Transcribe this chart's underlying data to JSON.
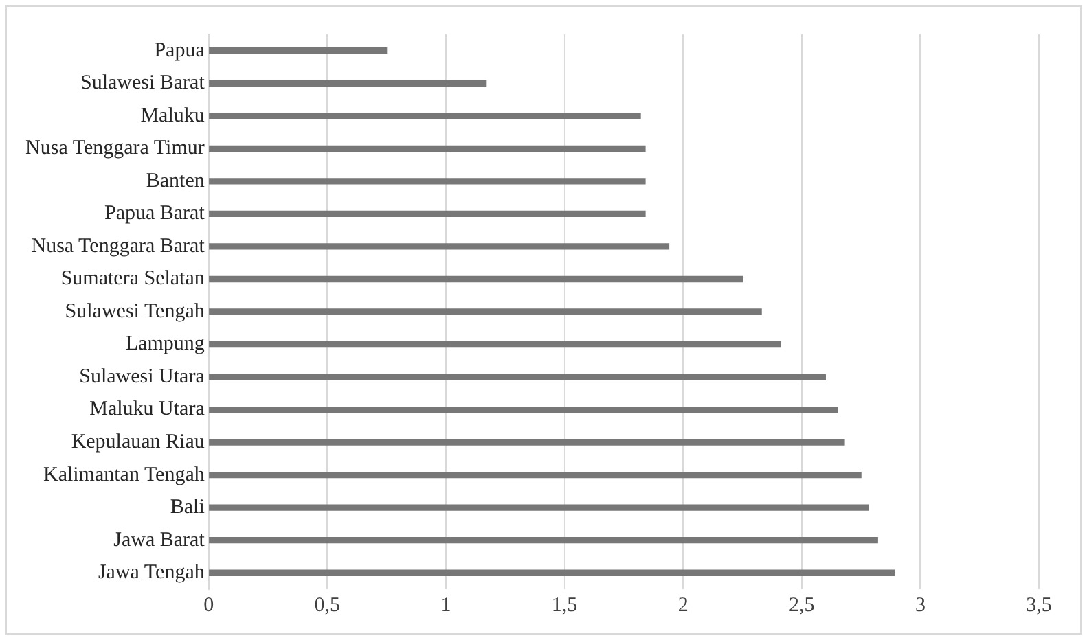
{
  "chart_data": {
    "type": "bar",
    "orientation": "horizontal",
    "categories": [
      "Papua",
      "Sulawesi Barat",
      "Maluku",
      "Nusa Tenggara Timur",
      "Banten",
      "Papua Barat",
      "Nusa Tenggara Barat",
      "Sumatera Selatan",
      "Sulawesi Tengah",
      "Lampung",
      "Sulawesi Utara",
      "Maluku Utara",
      "Kepulauan Riau",
      "Kalimantan Tengah",
      "Bali",
      "Jawa Barat",
      "Jawa Tengah"
    ],
    "values": [
      0.75,
      1.17,
      1.82,
      1.84,
      1.84,
      1.84,
      1.94,
      2.25,
      2.33,
      2.41,
      2.6,
      2.65,
      2.68,
      2.75,
      2.78,
      2.82,
      2.89
    ],
    "color": "#777777",
    "xlim": [
      0,
      3.5
    ],
    "xticks": [
      0,
      {
        "value": 0.5,
        "label": "0,5"
      },
      1,
      {
        "value": 1.5,
        "label": "1,5"
      },
      2,
      {
        "value": 2.5,
        "label": "2,5"
      },
      3,
      {
        "value": 3.5,
        "label": "3,5"
      }
    ],
    "grid": "x"
  }
}
